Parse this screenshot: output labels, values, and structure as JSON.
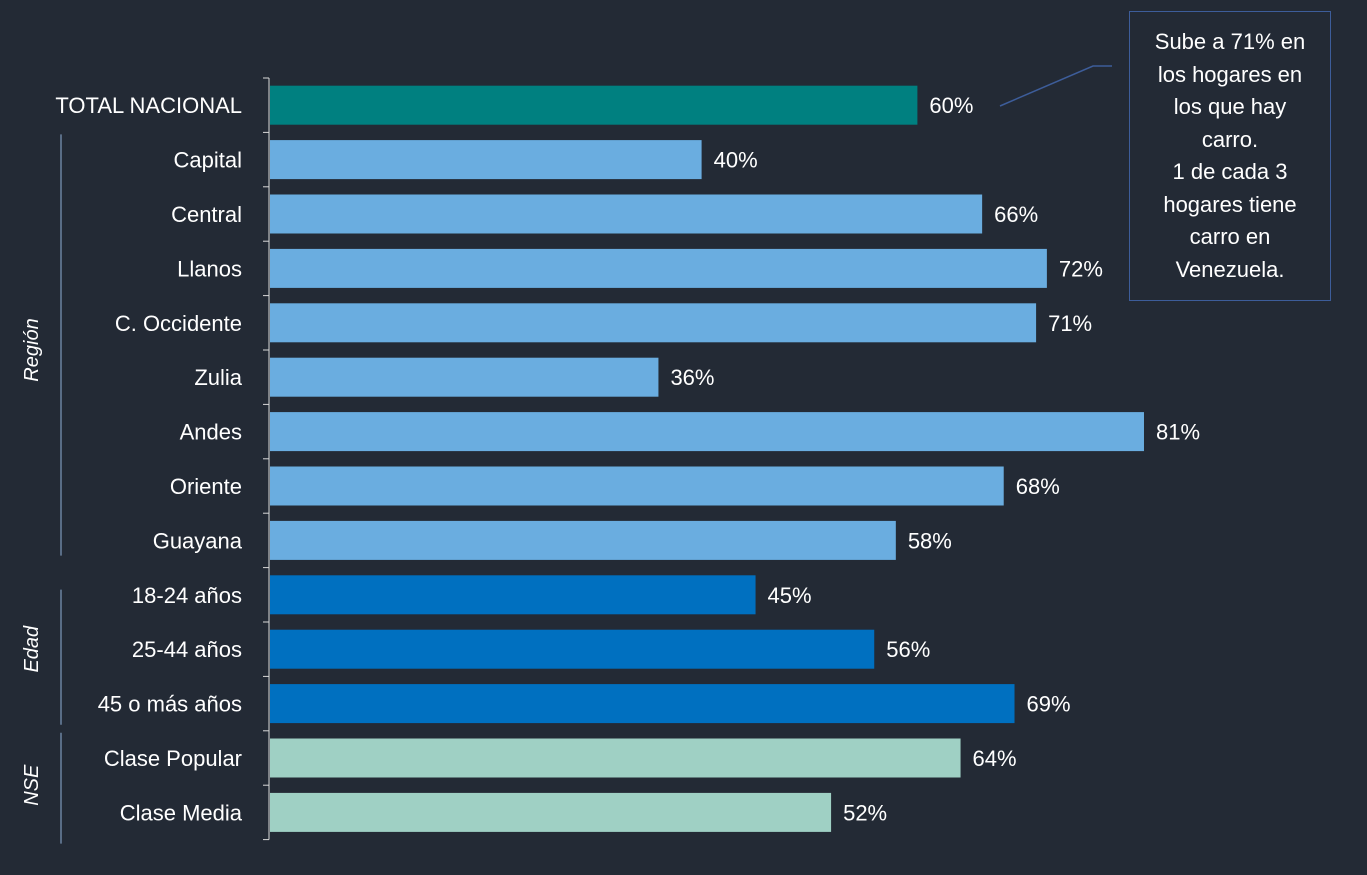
{
  "chart_data": {
    "type": "bar",
    "orientation": "horizontal",
    "categories": [
      "TOTAL NACIONAL",
      "Capital",
      "Central",
      "Llanos",
      "C. Occidente",
      "Zulia",
      "Andes",
      "Oriente",
      "Guayana",
      "18-24 años",
      "25-44 años",
      "45 o más años",
      "Clase Popular",
      "Clase Media"
    ],
    "values": [
      60,
      40,
      66,
      72,
      71,
      36,
      81,
      68,
      58,
      45,
      56,
      69,
      64,
      52
    ],
    "value_labels": [
      "60%",
      "40%",
      "66%",
      "72%",
      "71%",
      "36%",
      "81%",
      "68%",
      "58%",
      "45%",
      "56%",
      "69%",
      "64%",
      "52%"
    ],
    "unit": "%",
    "groups": [
      {
        "name": "Región",
        "from": 1,
        "to": 8
      },
      {
        "name": "Edad",
        "from": 9,
        "to": 11
      },
      {
        "name": "NSE",
        "from": 12,
        "to": 13
      }
    ],
    "bar_colors": [
      "#008080",
      "#6aade0",
      "#6aade0",
      "#6aade0",
      "#6aade0",
      "#6aade0",
      "#6aade0",
      "#6aade0",
      "#6aade0",
      "#0070c0",
      "#0070c0",
      "#0070c0",
      "#9fd0c4",
      "#9fd0c4"
    ],
    "xlim": [
      0,
      100
    ],
    "annotation": "Sube a 71% en\nlos hogares en\nlos que hay\ncarro.\n1 de cada 3\nhogares tiene\ncarro en\nVenezuela."
  },
  "colors": {
    "background": "#232a35",
    "axis": "#d9d9d9",
    "callout_border": "#3d5d9a",
    "group_line": "#8fb0d8"
  }
}
